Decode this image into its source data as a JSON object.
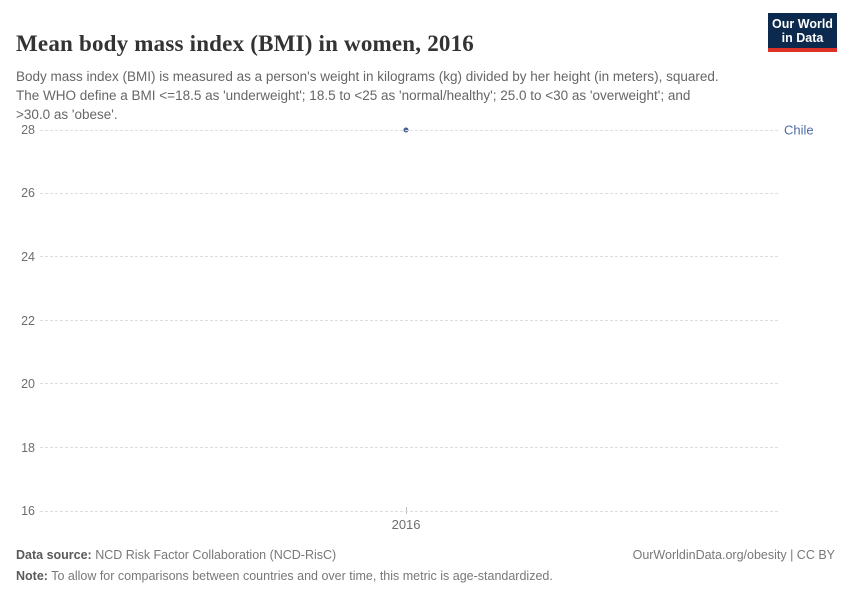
{
  "header": {
    "title": "Mean body mass index (BMI) in women, 2016",
    "subtitle": "Body mass index (BMI) is measured as a person's weight in kilograms (kg) divided by her height (in meters), squared. The WHO define a BMI <=18.5 as 'underweight'; 18.5 to <25 as 'normal/healthy'; 25.0 to <30 as 'overweight'; and >30.0 as 'obese'."
  },
  "logo": {
    "line1": "Our World",
    "line2": "in Data",
    "bg_color": "#0c2a4d",
    "bar_color": "#dc3126"
  },
  "chart_data": {
    "type": "scatter",
    "title": "Mean body mass index (BMI) in women, 2016",
    "xlabel": "",
    "ylabel": "",
    "series": [
      {
        "name": "Chile",
        "x": [
          2016
        ],
        "y": [
          28
        ],
        "color": "#4f6ea6",
        "marker_color": "#44618f"
      }
    ],
    "x_ticks": [
      2016
    ],
    "y_ticks": [
      16,
      18,
      20,
      22,
      24,
      26,
      28
    ],
    "ylim": [
      16,
      28
    ],
    "grid": "horizontal-dashed",
    "gridline_color": "#dedede",
    "legend_position": "entity-label-right",
    "layout": {
      "x_fraction": 0.496
    }
  },
  "footer": {
    "datasource_label": "Data source:",
    "datasource_value": " NCD Risk Factor Collaboration (NCD-RisC)",
    "note_label": "Note:",
    "note_value": " To allow for comparisons between countries and over time, this metric is age-standardized.",
    "link": "OurWorldinData.org/obesity | CC BY"
  }
}
